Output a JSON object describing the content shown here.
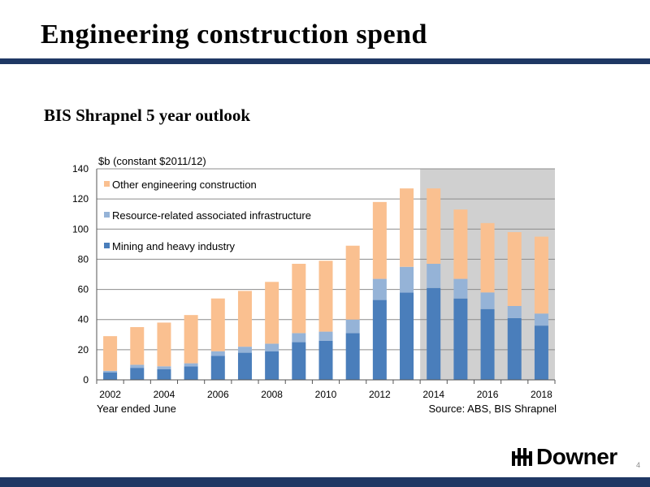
{
  "slide": {
    "title": "Engineering construction spend",
    "subtitle": "BIS Shrapnel 5 year outlook",
    "logo_text": "Downer",
    "page_number": "4"
  },
  "colors": {
    "brand_navy": "#1f3864",
    "mining": "#4a7ebb",
    "resource": "#95b3d7",
    "other": "#fac090",
    "forecast_shading": "#d0d0d0"
  },
  "chart_data": {
    "type": "bar",
    "stacked": true,
    "unit_label": "$b (constant $2011/12)",
    "xlabel": "Year ended June",
    "source": "Source: ABS, BIS Shrapnel",
    "ylim": [
      0,
      140
    ],
    "yticks": [
      "0",
      "20",
      "40",
      "60",
      "80",
      "100",
      "120",
      "140"
    ],
    "xticks": [
      "2002",
      "2004",
      "2006",
      "2008",
      "2010",
      "2012",
      "2014",
      "2016",
      "2018"
    ],
    "categories": [
      "2002",
      "2003",
      "2004",
      "2005",
      "2006",
      "2007",
      "2008",
      "2009",
      "2010",
      "2011",
      "2012",
      "2013",
      "2014",
      "2015",
      "2016",
      "2017",
      "2018"
    ],
    "forecast_from": "2014",
    "legend_position": "top-left",
    "series": [
      {
        "name": "Mining and heavy industry",
        "values": [
          5,
          8,
          7,
          9,
          16,
          18,
          19,
          25,
          26,
          31,
          53,
          58,
          61,
          54,
          47,
          41,
          36
        ]
      },
      {
        "name": "Resource-related associated infrastructure",
        "values": [
          1,
          2,
          2,
          2,
          3,
          4,
          5,
          6,
          6,
          9,
          14,
          17,
          16,
          13,
          11,
          8,
          8
        ]
      },
      {
        "name": "Other engineering construction",
        "values": [
          23,
          25,
          29,
          32,
          35,
          37,
          41,
          46,
          47,
          49,
          51,
          52,
          50,
          46,
          46,
          49,
          51
        ]
      }
    ],
    "grid": true
  }
}
